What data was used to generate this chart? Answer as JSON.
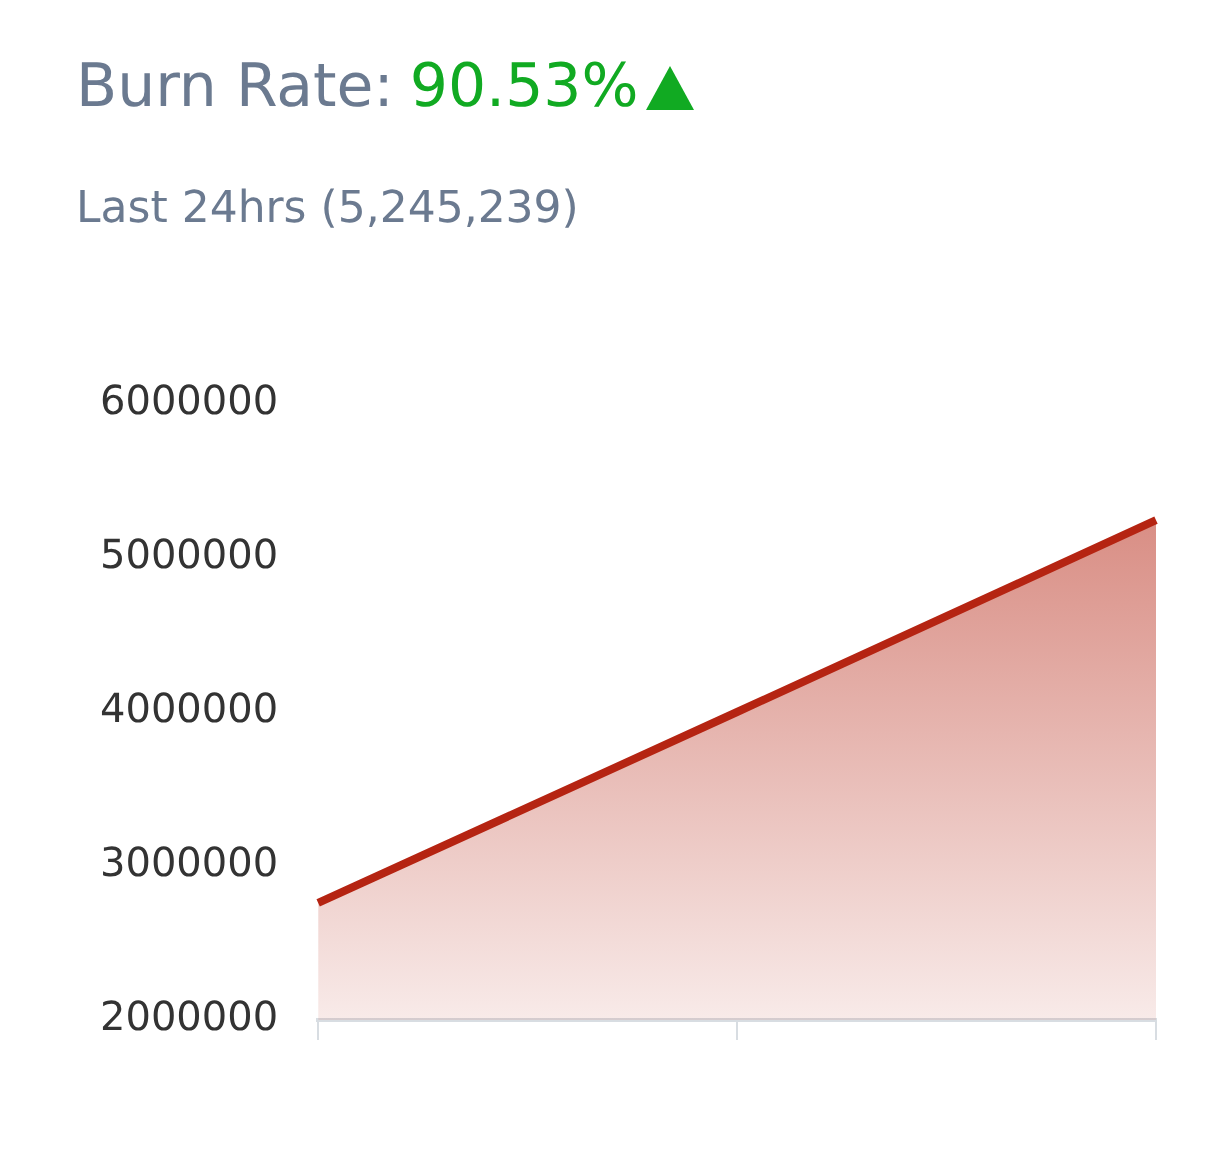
{
  "chart_data": {
    "type": "area",
    "title": "Burn Rate:",
    "annotations": [
      "90.53%"
    ],
    "subtitle": "Last 24hrs (5,245,239)",
    "categories": [
      null,
      null,
      null
    ],
    "series": [
      {
        "color": "#b52412",
        "values": [
          2760000,
          4000000,
          5245239
        ]
      }
    ],
    "ylim": [
      2000000,
      6000000
    ],
    "yticks": [
      2000000,
      3000000,
      4000000,
      5000000,
      6000000
    ],
    "grid": false,
    "legend": false,
    "marker": "none",
    "line_style": "solid",
    "tick_labels": "y"
  }
}
